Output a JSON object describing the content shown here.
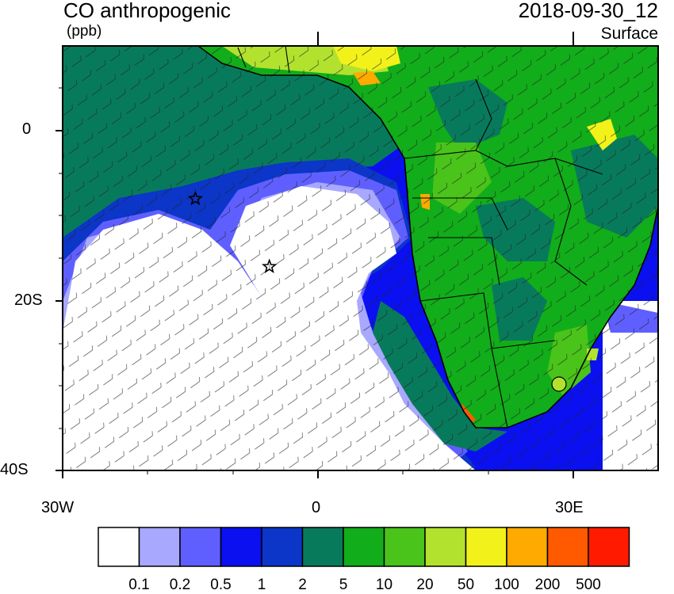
{
  "header": {
    "title": "CO anthropogenic",
    "units": "(ppb)",
    "datetime": "2018-09-30_12",
    "level": "Surface"
  },
  "map": {
    "region": "West / Southern Africa and South Atlantic",
    "lat_range": [
      -40,
      10
    ],
    "lon_range": [
      -30,
      40
    ],
    "lat_ticks": [
      "0",
      "20S",
      "40S"
    ],
    "lon_ticks": [
      "30W",
      "0",
      "30E"
    ],
    "markers": [
      {
        "type": "star-icon",
        "lon": -14.4,
        "lat": -8
      },
      {
        "type": "star-icon",
        "lon": -5.7,
        "lat": -16
      }
    ],
    "overlay": "wind barbs"
  },
  "colorbar": {
    "levels": [
      "0.1",
      "0.2",
      "0.5",
      "1",
      "2",
      "5",
      "10",
      "20",
      "50",
      "100",
      "200",
      "500"
    ],
    "colors": [
      "#ffffff",
      "#a8a8ff",
      "#5f5fff",
      "#0a10f0",
      "#0b36c8",
      "#087a5c",
      "#12ad1a",
      "#4ac31a",
      "#b2e22e",
      "#f2f21a",
      "#ffaa00",
      "#ff5a00",
      "#ff1a00"
    ]
  }
}
